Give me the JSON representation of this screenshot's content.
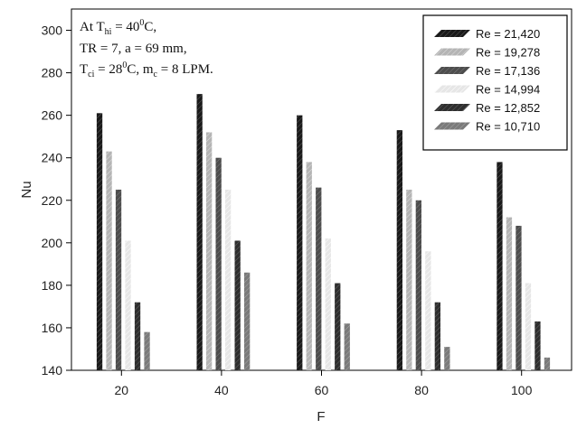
{
  "chart_data": {
    "type": "bar",
    "xlabel": "F",
    "ylabel": "Nu",
    "ylim": [
      140,
      310
    ],
    "yticks": [
      140,
      160,
      180,
      200,
      220,
      240,
      260,
      280,
      300
    ],
    "categories": [
      "20",
      "40",
      "60",
      "80",
      "100"
    ],
    "series": [
      {
        "name": "Re =   21,420",
        "color": "#1a1a1a",
        "values": [
          261,
          270,
          260,
          253,
          238
        ]
      },
      {
        "name": "Re =   19,278",
        "color": "#b4b4b4",
        "values": [
          243,
          252,
          238,
          225,
          212
        ]
      },
      {
        "name": "Re =   17,136",
        "color": "#4d4d4d",
        "values": [
          225,
          240,
          226,
          220,
          208
        ]
      },
      {
        "name": "Re =   14,994",
        "color": "#e6e6e6",
        "values": [
          201,
          225,
          202,
          196,
          181
        ]
      },
      {
        "name": "Re =   12,852",
        "color": "#2e2e2e",
        "values": [
          172,
          201,
          181,
          172,
          163
        ]
      },
      {
        "name": "Re =   10,710",
        "color": "#7a7a7a",
        "values": [
          158,
          186,
          162,
          151,
          146
        ]
      }
    ],
    "legend_position": "top-right",
    "grid": false,
    "annotation": {
      "line1_prefix": "At T",
      "line1_sub": "hi",
      "line1_eq": " = 40",
      "line1_sup": "0",
      "line1_suffix": "C,",
      "line2": "TR = 7, a = 69 mm,",
      "line3_prefix": "T",
      "line3_sub": "ci",
      "line3_eq": " = 28",
      "line3_sup": "0",
      "line3_mid": "C, m",
      "line3_sub2": "c",
      "line3_suffix": " = 8 LPM."
    }
  }
}
